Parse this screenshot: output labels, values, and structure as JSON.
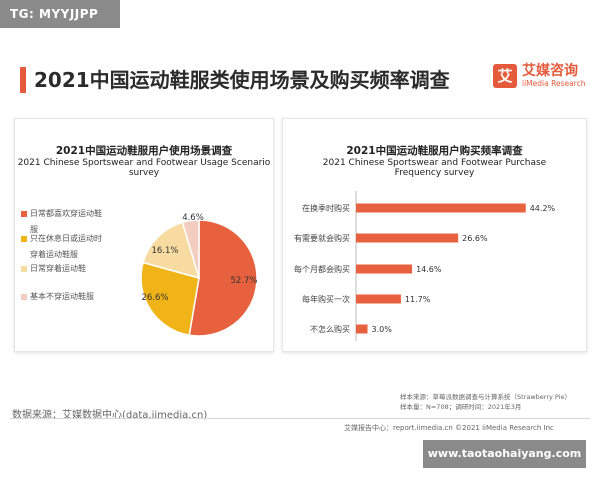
{
  "top_tag": "TG: MYYJJPP",
  "header": {
    "title": "2021中国运动鞋服类使用场景及购买频率调查",
    "logo_glyph": "艾",
    "logo_cn": "艾媒咨询",
    "logo_en": "iiMedia Research"
  },
  "left_chart": {
    "title_cn": "2021中国运动鞋服用户使用场景调查",
    "title_en_1": "2021 Chinese Sportswear and Footwear Usage Scenario",
    "title_en_2": "survey",
    "legend": [
      "日常都喜欢穿运动鞋",
      "服",
      "只在休息日或运动时",
      "穿着运动鞋服",
      "日常穿着运动鞋",
      "基本不穿运动鞋服"
    ]
  },
  "right_chart": {
    "title_cn": "2021中国运动鞋服用户购买频率调查",
    "title_en_1": "2021 Chinese Sportswear and Footwear Purchase",
    "title_en_2": "Frequency survey"
  },
  "colors": {
    "accent": "#e45a3a",
    "pie": [
      "#e8613e",
      "#f0b419",
      "#f7dba0",
      "#f2cdc0"
    ],
    "bar": "#e8613e"
  },
  "chart_data": [
    {
      "type": "pie",
      "title": "2021中国运动鞋服用户使用场景调查",
      "subtitle": "2021 Chinese Sportswear and Footwear Usage Scenario survey",
      "unit": "%",
      "slices": [
        {
          "label": "日常都喜欢穿运动鞋服",
          "value": 52.7
        },
        {
          "label": "只在休息日或运动时穿着运动鞋服",
          "value": 26.6
        },
        {
          "label": "日常穿着运动鞋",
          "value": 16.1
        },
        {
          "label": "基本不穿运动鞋服",
          "value": 4.6
        }
      ]
    },
    {
      "type": "bar",
      "orientation": "horizontal",
      "title": "2021中国运动鞋服用户购买频率调查",
      "subtitle": "2021 Chinese Sportswear and Footwear Purchase Frequency survey",
      "unit": "%",
      "categories": [
        "在换季时购买",
        "有需要就会购买",
        "每个月都会购买",
        "每年购买一次",
        "不怎么购买"
      ],
      "values": [
        44.2,
        26.6,
        14.6,
        11.7,
        3.0
      ],
      "xlim": [
        0,
        50
      ]
    }
  ],
  "footer": {
    "source": "数据来源：艾媒数据中心(data.iimedia.cn)",
    "sample_source": "样本来源：草莓派数据调查与计算系统（Strawberry Pie）",
    "sample_info": "样本量：N=708；调研时间：2021年3月",
    "copyright": "艾媒报告中心：report.iimedia.cn   ©2021  iiMedia Research  Inc",
    "watermark": "www.taotaohaiyang.com"
  }
}
